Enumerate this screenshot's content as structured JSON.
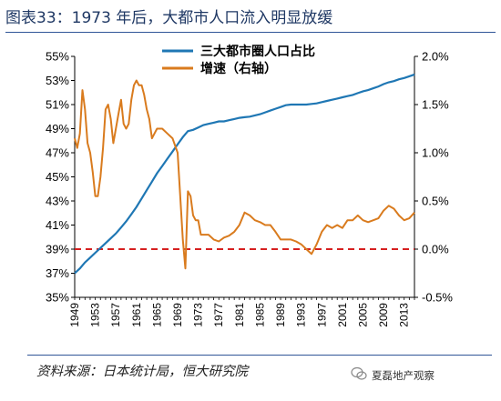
{
  "title": "图表33：1973 年后，大都市人口流入明显放缓",
  "source": "资料来源：日本统计局，恒大研究院",
  "watermark": "夏磊地产观察",
  "colors": {
    "share": "#1f77b4",
    "growth": "#d97b1e",
    "refline": "#d62020",
    "title": "#1f3864"
  },
  "chart_data": {
    "type": "line",
    "title": "",
    "xlabel": "",
    "ylabel": "",
    "x_tick_labels": [
      "1949",
      "1953",
      "1957",
      "1961",
      "1965",
      "1969",
      "1973",
      "1977",
      "1981",
      "1985",
      "1989",
      "1993",
      "1997",
      "2001",
      "2005",
      "2009",
      "2013"
    ],
    "y_left_tick_labels": [
      "35%",
      "37%",
      "39%",
      "41%",
      "43%",
      "45%",
      "47%",
      "49%",
      "51%",
      "53%",
      "55%"
    ],
    "y_right_tick_labels": [
      "-0.5%",
      "0.0%",
      "0.5%",
      "1.0%",
      "1.5%",
      "2.0%"
    ],
    "ylim_left": [
      35,
      55
    ],
    "ylim_right": [
      -0.5,
      2.0
    ],
    "xlim": [
      1949,
      2015
    ],
    "legend_position": "top",
    "reference_line": {
      "axis": "right",
      "value": 0.0,
      "style": "dashed"
    },
    "series": [
      {
        "name": "三大都市圈人口占比",
        "axis": "left",
        "x": [
          1949,
          1950,
          1951,
          1952,
          1953,
          1954,
          1955,
          1956,
          1957,
          1958,
          1959,
          1960,
          1961,
          1962,
          1963,
          1964,
          1965,
          1966,
          1967,
          1968,
          1969,
          1970,
          1971,
          1972,
          1973,
          1974,
          1975,
          1976,
          1977,
          1978,
          1979,
          1980,
          1981,
          1982,
          1983,
          1984,
          1985,
          1986,
          1987,
          1988,
          1989,
          1990,
          1991,
          1992,
          1993,
          1994,
          1995,
          1996,
          1997,
          1998,
          1999,
          2000,
          2001,
          2002,
          2003,
          2004,
          2005,
          2006,
          2007,
          2008,
          2009,
          2010,
          2011,
          2012,
          2013,
          2014,
          2015
        ],
        "values": [
          37.0,
          37.4,
          37.9,
          38.3,
          38.7,
          39.1,
          39.5,
          39.9,
          40.3,
          40.8,
          41.3,
          41.9,
          42.5,
          43.2,
          43.9,
          44.6,
          45.3,
          45.9,
          46.5,
          47.1,
          47.7,
          48.3,
          48.8,
          48.9,
          49.1,
          49.3,
          49.4,
          49.5,
          49.6,
          49.6,
          49.7,
          49.8,
          49.9,
          49.95,
          50.0,
          50.1,
          50.2,
          50.35,
          50.5,
          50.65,
          50.8,
          50.95,
          51.0,
          51.0,
          51.0,
          51.0,
          51.05,
          51.1,
          51.2,
          51.3,
          51.4,
          51.5,
          51.6,
          51.7,
          51.8,
          51.95,
          52.1,
          52.2,
          52.35,
          52.5,
          52.7,
          52.85,
          52.95,
          53.1,
          53.2,
          53.35,
          53.5
        ]
      },
      {
        "name": "增速（右轴）",
        "axis": "right",
        "x": [
          1949,
          1949.5,
          1950,
          1950.5,
          1951,
          1951.5,
          1952,
          1952.5,
          1953,
          1953.5,
          1954,
          1954.5,
          1955,
          1955.5,
          1956,
          1956.5,
          1957,
          1957.5,
          1958,
          1958.5,
          1959,
          1959.5,
          1960,
          1960.5,
          1961,
          1961.5,
          1962,
          1962.5,
          1963,
          1963.5,
          1964,
          1964.5,
          1965,
          1966,
          1967,
          1968,
          1969,
          1970,
          1970.5,
          1971,
          1971.5,
          1972,
          1972.5,
          1973,
          1973.5,
          1974,
          1975,
          1976,
          1977,
          1978,
          1979,
          1980,
          1981,
          1982,
          1983,
          1984,
          1985,
          1986,
          1987,
          1988,
          1989,
          1990,
          1991,
          1992,
          1993,
          1994,
          1995,
          1996,
          1997,
          1998,
          1999,
          2000,
          2001,
          2002,
          2003,
          2004,
          2005,
          2006,
          2007,
          2008,
          2009,
          2010,
          2011,
          2012,
          2013,
          2014,
          2015
        ],
        "values": [
          1.15,
          1.05,
          1.2,
          1.65,
          1.45,
          1.1,
          1.0,
          0.8,
          0.55,
          0.55,
          0.75,
          1.05,
          1.45,
          1.5,
          1.35,
          1.1,
          1.25,
          1.4,
          1.55,
          1.3,
          1.25,
          1.3,
          1.55,
          1.7,
          1.75,
          1.7,
          1.7,
          1.6,
          1.45,
          1.35,
          1.15,
          1.2,
          1.25,
          1.25,
          1.2,
          1.15,
          1.0,
          0.1,
          -0.2,
          0.6,
          0.55,
          0.35,
          0.3,
          0.3,
          0.15,
          0.15,
          0.15,
          0.1,
          0.08,
          0.12,
          0.14,
          0.18,
          0.25,
          0.38,
          0.35,
          0.3,
          0.28,
          0.25,
          0.25,
          0.18,
          0.1,
          0.1,
          0.1,
          0.08,
          0.05,
          0.0,
          -0.05,
          0.05,
          0.18,
          0.25,
          0.22,
          0.25,
          0.22,
          0.3,
          0.3,
          0.35,
          0.3,
          0.28,
          0.3,
          0.32,
          0.4,
          0.45,
          0.42,
          0.35,
          0.3,
          0.32,
          0.38
        ]
      }
    ]
  }
}
